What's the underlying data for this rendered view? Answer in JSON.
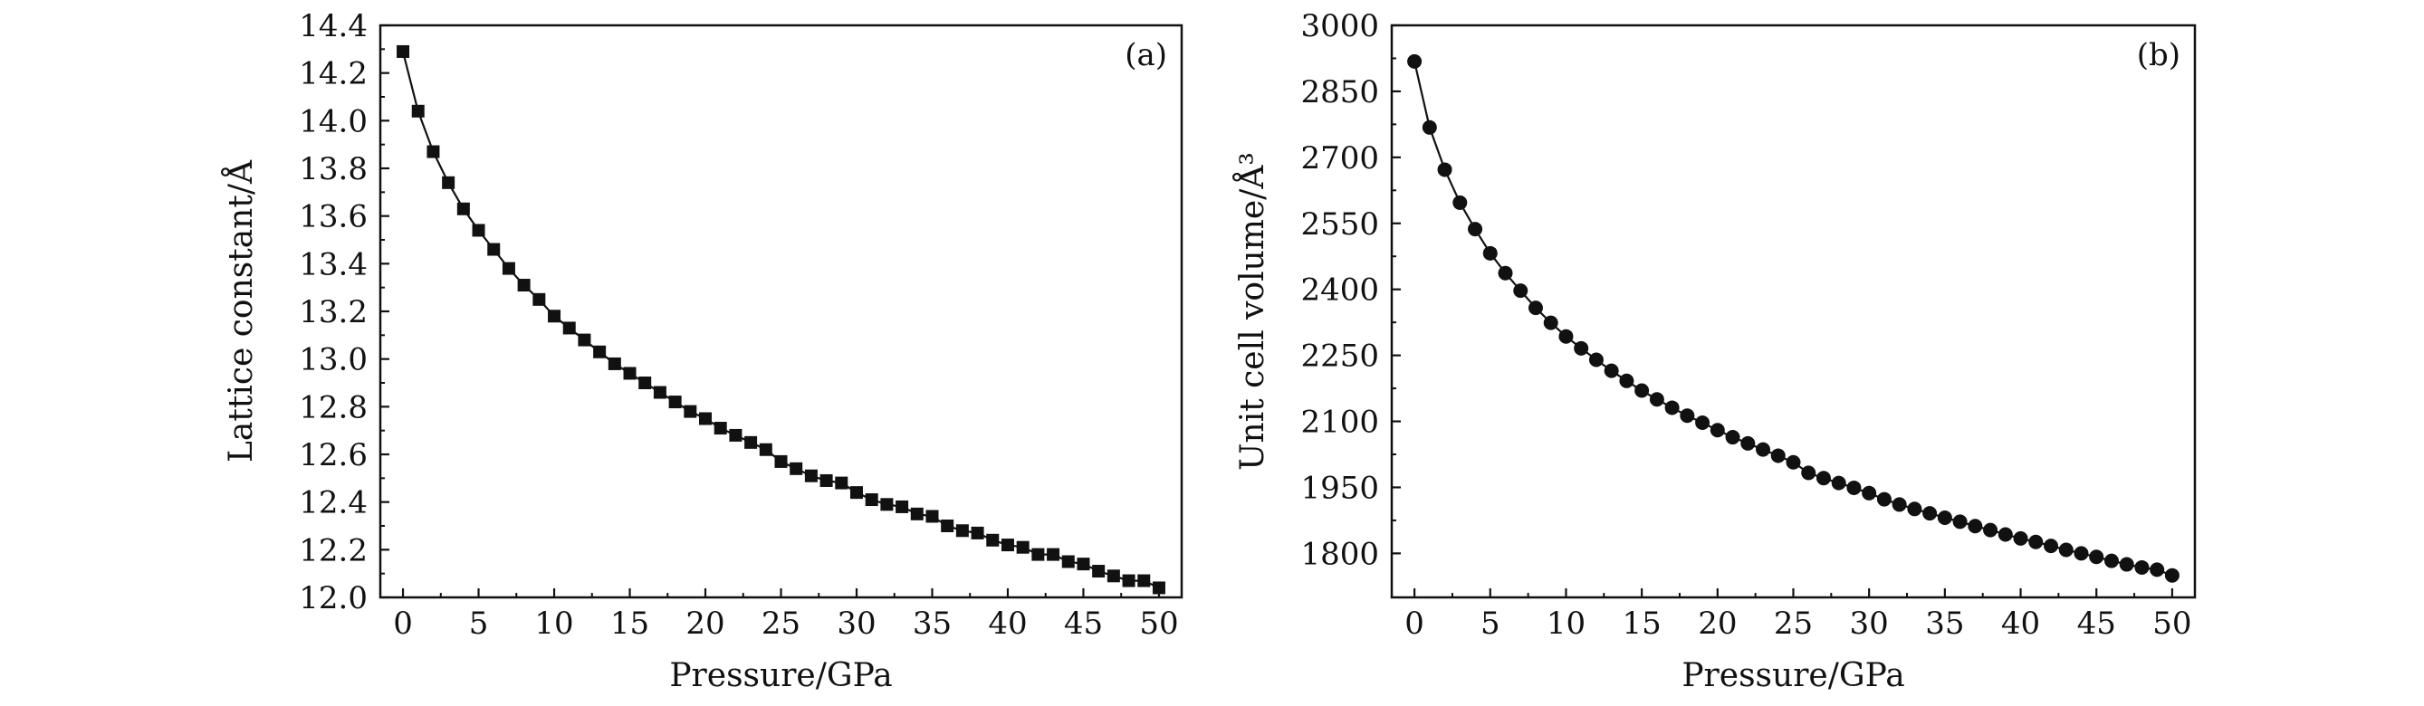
{
  "figure": {
    "colors": {
      "line": "#111111",
      "marker": "#111111",
      "axis": "#111111",
      "background": "#ffffff"
    }
  },
  "chart_data": [
    {
      "type": "line",
      "panel_label": "(a)",
      "marker": "square",
      "xlabel": "Pressure/GPa",
      "ylabel": "Lattice constant/Å",
      "xlim": [
        -1.5,
        51.5
      ],
      "ylim": [
        12.0,
        14.4
      ],
      "xticks": [
        0,
        5,
        10,
        15,
        20,
        25,
        30,
        35,
        40,
        45,
        50
      ],
      "xtick_labels": [
        "0",
        "5",
        "10",
        "15",
        "20",
        "25",
        "30",
        "35",
        "40",
        "45",
        "50"
      ],
      "yticks": [
        12.0,
        12.2,
        12.4,
        12.6,
        12.8,
        13.0,
        13.2,
        13.4,
        13.6,
        13.8,
        14.0,
        14.2,
        14.4
      ],
      "ytick_labels": [
        "12.0",
        "12.2",
        "12.4",
        "12.6",
        "12.8",
        "13.0",
        "13.2",
        "13.4",
        "13.6",
        "13.8",
        "14.0",
        "14.2",
        "14.4"
      ],
      "x": [
        0,
        1,
        2,
        3,
        4,
        5,
        6,
        7,
        8,
        9,
        10,
        11,
        12,
        13,
        14,
        15,
        16,
        17,
        18,
        19,
        20,
        21,
        22,
        23,
        24,
        25,
        26,
        27,
        28,
        29,
        30,
        31,
        32,
        33,
        34,
        35,
        36,
        37,
        38,
        39,
        40,
        41,
        42,
        43,
        44,
        45,
        46,
        47,
        48,
        49,
        50
      ],
      "y": [
        14.29,
        14.04,
        13.87,
        13.74,
        13.63,
        13.54,
        13.46,
        13.38,
        13.31,
        13.25,
        13.18,
        13.13,
        13.08,
        13.03,
        12.98,
        12.94,
        12.9,
        12.86,
        12.82,
        12.78,
        12.75,
        12.71,
        12.68,
        12.65,
        12.62,
        12.57,
        12.54,
        12.51,
        12.49,
        12.48,
        12.44,
        12.41,
        12.39,
        12.38,
        12.35,
        12.34,
        12.3,
        12.28,
        12.27,
        12.24,
        12.22,
        12.21,
        12.18,
        12.18,
        12.15,
        12.14,
        12.11,
        12.09,
        12.07,
        12.07,
        12.04
      ]
    },
    {
      "type": "line",
      "panel_label": "(b)",
      "marker": "circle",
      "xlabel": "Pressure/GPa",
      "ylabel": "Unit cell volume/Å³",
      "xlim": [
        -1.5,
        51.5
      ],
      "ylim": [
        1700,
        3000
      ],
      "xticks": [
        0,
        5,
        10,
        15,
        20,
        25,
        30,
        35,
        40,
        45,
        50
      ],
      "xtick_labels": [
        "0",
        "5",
        "10",
        "15",
        "20",
        "25",
        "30",
        "35",
        "40",
        "45",
        "50"
      ],
      "yticks": [
        1800,
        1950,
        2100,
        2250,
        2400,
        2550,
        2700,
        2850,
        3000
      ],
      "ytick_labels": [
        "1800",
        "1950",
        "2100",
        "2250",
        "2400",
        "2550",
        "2700",
        "2850",
        "3000"
      ],
      "x": [
        0,
        1,
        2,
        3,
        4,
        5,
        6,
        7,
        8,
        9,
        10,
        11,
        12,
        13,
        14,
        15,
        16,
        17,
        18,
        19,
        20,
        21,
        22,
        23,
        24,
        25,
        26,
        27,
        28,
        29,
        30,
        31,
        32,
        33,
        34,
        35,
        36,
        37,
        38,
        39,
        40,
        41,
        42,
        43,
        44,
        45,
        46,
        47,
        48,
        49,
        50
      ],
      "y": [
        2918,
        2768,
        2672,
        2597,
        2537,
        2482,
        2437,
        2397,
        2358,
        2324,
        2293,
        2266,
        2240,
        2215,
        2192,
        2170,
        2150,
        2131,
        2113,
        2097,
        2080,
        2064,
        2050,
        2036,
        2022,
        2007,
        1983,
        1971,
        1960,
        1949,
        1937,
        1923,
        1911,
        1901,
        1891,
        1881,
        1872,
        1862,
        1853,
        1843,
        1834,
        1826,
        1817,
        1808,
        1800,
        1792,
        1783,
        1775,
        1768,
        1763,
        1750
      ]
    }
  ]
}
